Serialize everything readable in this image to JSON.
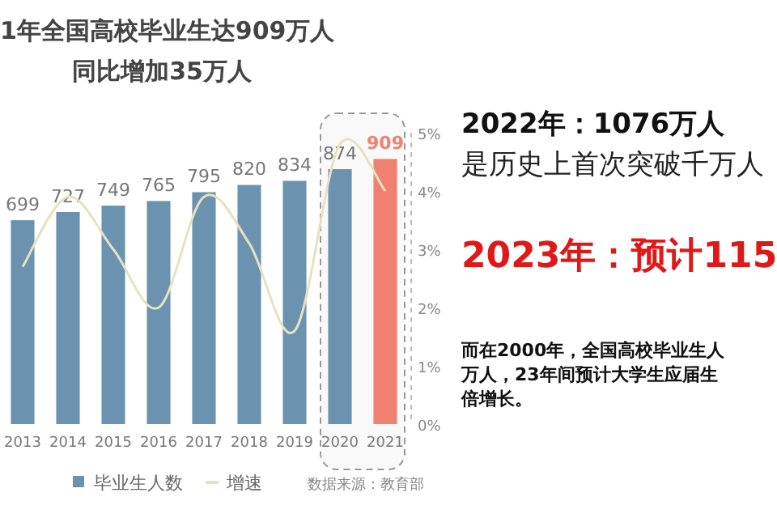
{
  "chart_data": {
    "type": "bar",
    "title": "1年全国高校毕业生达909万人",
    "subtitle": "同比增加35万人",
    "categories": [
      "2013",
      "2014",
      "2015",
      "2016",
      "2017",
      "2018",
      "2019",
      "2020",
      "2021"
    ],
    "series": [
      {
        "name": "毕业生人数",
        "color": "#6b93b0",
        "colors": [
          "#6b93b0",
          "#6b93b0",
          "#6b93b0",
          "#6b93b0",
          "#6b93b0",
          "#6b93b0",
          "#6b93b0",
          "#6b93b0",
          "#f08070"
        ],
        "values": [
          699,
          727,
          749,
          765,
          795,
          820,
          834,
          874,
          909
        ],
        "value_labels": [
          "699",
          "727",
          "749",
          "765",
          "795",
          "820",
          "834",
          "874",
          "909"
        ]
      },
      {
        "name": "增速",
        "type": "line",
        "axis": "y2",
        "color": "#e6e2bf",
        "values": [
          2.7,
          3.9,
          3.0,
          2.0,
          3.9,
          3.1,
          1.6,
          4.8,
          4.0
        ]
      }
    ],
    "y2lim": [
      0,
      5
    ],
    "y2ticks": [
      {
        "value": 0,
        "label": "0%"
      },
      {
        "value": 1,
        "label": "1%"
      },
      {
        "value": 2,
        "label": "2%"
      },
      {
        "value": 3,
        "label": "3%"
      },
      {
        "value": 4,
        "label": "4%"
      },
      {
        "value": 5,
        "label": "5%"
      }
    ],
    "bands": [
      {
        "axis": "x",
        "from": "2020",
        "to": "2021",
        "color": "#999999"
      }
    ],
    "legend": "bottom",
    "grid": false,
    "annotations": [
      "数据来源：教育部",
      "2022年：1076万人",
      "是历史上首次突破千万人",
      "2023年：预计115",
      "而在2000年，全国高校毕业生人",
      "万人，23年间预计大学生应届生",
      "倍增长。"
    ]
  }
}
